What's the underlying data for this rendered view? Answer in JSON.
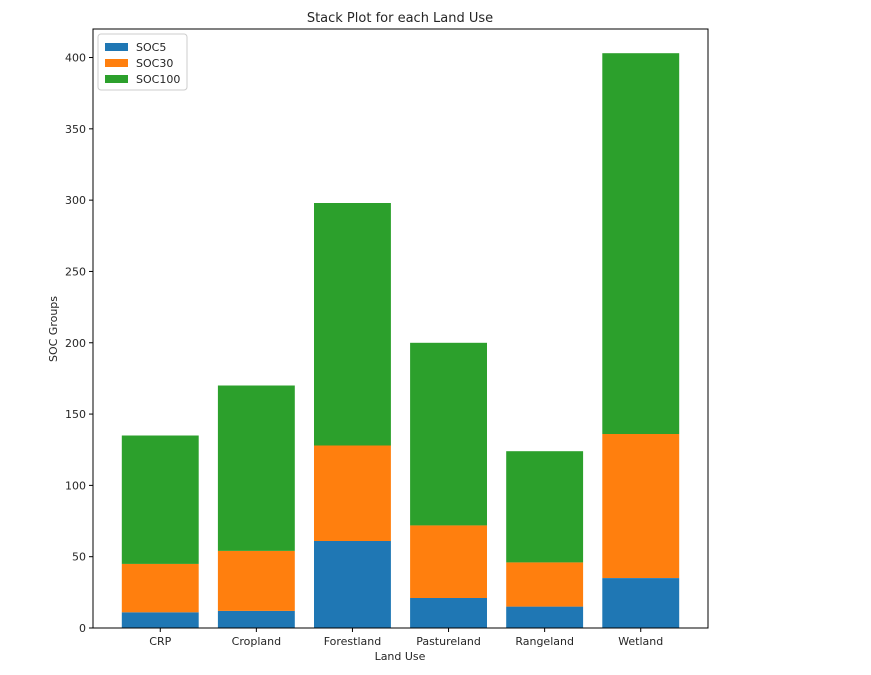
{
  "chart_data": {
    "type": "bar",
    "stacked": true,
    "title": "Stack Plot for each Land Use",
    "xlabel": "Land Use",
    "ylabel": "SOC Groups",
    "categories": [
      "CRP",
      "Cropland",
      "Forestland",
      "Pastureland",
      "Rangeland",
      "Wetland"
    ],
    "ylim": [
      0,
      420
    ],
    "yticks": [
      0,
      50,
      100,
      150,
      200,
      250,
      300,
      350,
      400
    ],
    "grid": false,
    "legend_position": "top-left",
    "series": [
      {
        "name": "SOC5",
        "color": "#1f77b4",
        "values": [
          11,
          12,
          61,
          21,
          15,
          35
        ]
      },
      {
        "name": "SOC30",
        "color": "#ff7f0e",
        "values": [
          34,
          42,
          67,
          51,
          31,
          101
        ]
      },
      {
        "name": "SOC100",
        "color": "#2ca02c",
        "values": [
          90,
          116,
          170,
          128,
          78,
          267
        ]
      }
    ]
  }
}
